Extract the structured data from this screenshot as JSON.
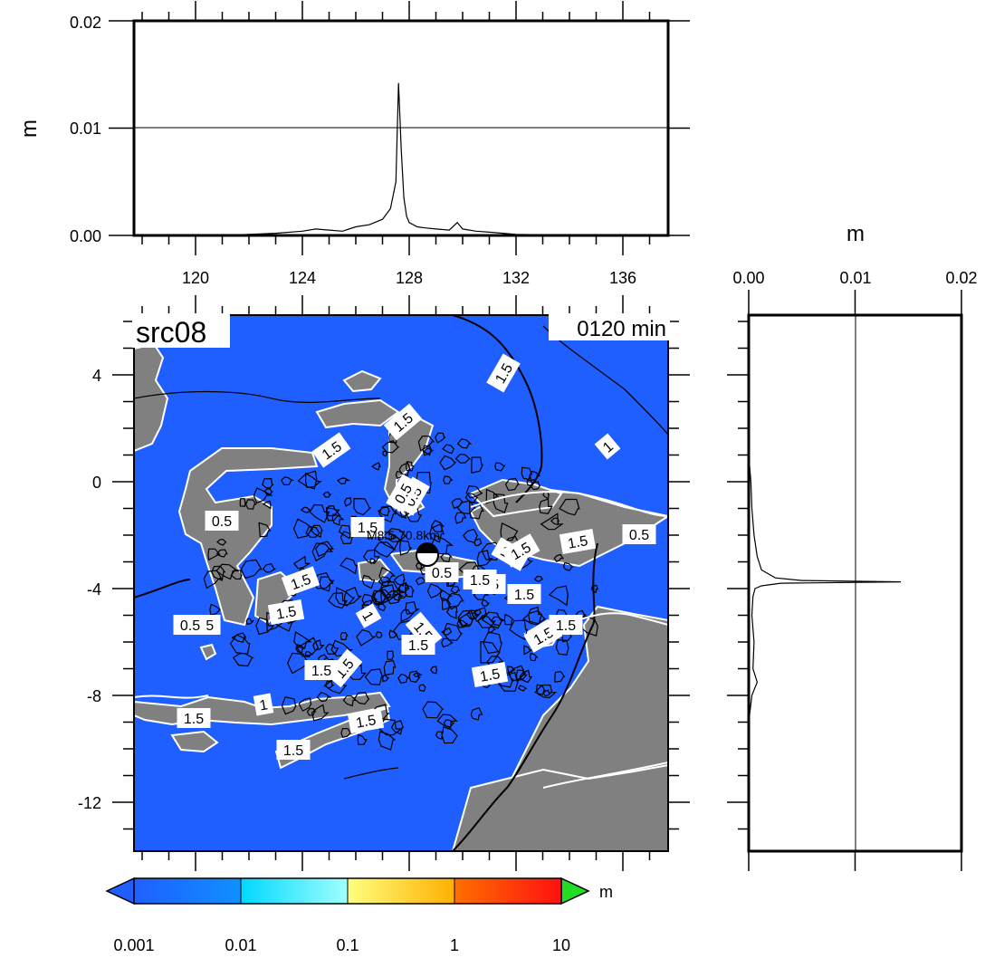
{
  "map": {
    "source_label": "src08",
    "time_label": "0120 min",
    "epicenter_label": "M8.5 70.8km",
    "lat_ticks": [
      "4",
      "0",
      "-4",
      "-8",
      "-12"
    ],
    "lon_ticks": [
      "120",
      "124",
      "128",
      "132",
      "136"
    ],
    "contour_labels": [
      "1.5",
      "1.5",
      "1.5",
      "1",
      "0.5",
      "0.5",
      "1.5",
      "1.5",
      "1.5",
      "1.5",
      "0.5",
      "1",
      "1.5",
      "1.5",
      "0.5",
      "1.5",
      "1.5",
      "1",
      "1.5",
      "1.5",
      "1.5",
      "1.5",
      "1.5",
      "1.5",
      "0.5",
      "1.5",
      "0.5",
      "1.5",
      "0.5",
      "1.5",
      "1.5",
      "1.5"
    ],
    "colors": {
      "sea": "#1f5fff",
      "land": "#808080"
    }
  },
  "top_profile": {
    "ylabel": "m",
    "y_ticks": [
      "0.00",
      "0.01",
      "0.02"
    ]
  },
  "side_profile": {
    "xlabel": "m",
    "x_ticks": [
      "0.00",
      "0.01",
      "0.02"
    ]
  },
  "colorbar": {
    "unit": "m",
    "tick_labels": [
      "0.001",
      "0.01",
      "0.1",
      "1",
      "10"
    ],
    "colors": [
      "#1f5fff",
      "#00a8ff",
      "#40ffff",
      "#ffff66",
      "#ffa800",
      "#ff5000",
      "#ff1010",
      "#22dd22"
    ]
  },
  "chart_data": [
    {
      "type": "line",
      "title": "",
      "xlabel": "",
      "ylabel": "m",
      "xlim": [
        118,
        137.5
      ],
      "ylim": [
        0,
        0.02
      ],
      "x": [
        118,
        121,
        122,
        123,
        124,
        124.5,
        125,
        125.5,
        126,
        126.5,
        127,
        127.3,
        127.5,
        127.6,
        127.7,
        127.8,
        127.9,
        128,
        128.3,
        128.6,
        129,
        129.5,
        129.8,
        130,
        130.5,
        131,
        131.5,
        132,
        133,
        134,
        137.5
      ],
      "y": [
        0,
        0,
        0.0001,
        0.0002,
        0.0004,
        0.0006,
        0.0005,
        0.0004,
        0.0008,
        0.001,
        0.0015,
        0.0025,
        0.005,
        0.0142,
        0.008,
        0.0035,
        0.0018,
        0.0012,
        0.0008,
        0.0007,
        0.0006,
        0.0005,
        0.0012,
        0.0006,
        0.0004,
        0.0003,
        0.0002,
        0.0001,
        5e-05,
        0,
        0
      ]
    },
    {
      "type": "line",
      "title": "",
      "xlabel": "m",
      "ylabel": "",
      "xlim": [
        0,
        0.02
      ],
      "ylim": [
        -14,
        6.5
      ],
      "y": [
        6.5,
        1,
        0,
        -1,
        -2,
        -2.8,
        -3.3,
        -3.6,
        -3.7,
        -3.75,
        -3.8,
        -3.9,
        -4.0,
        -4.3,
        -5,
        -6,
        -7,
        -7.5,
        -8,
        -9,
        -14
      ],
      "x": [
        0,
        0,
        0.0002,
        0.0003,
        0.0005,
        0.0008,
        0.0012,
        0.0025,
        0.005,
        0.0143,
        0.003,
        0.0012,
        0.0006,
        0.0004,
        0.0003,
        0.0005,
        0.0004,
        0.0008,
        0.0003,
        0,
        0
      ]
    }
  ]
}
